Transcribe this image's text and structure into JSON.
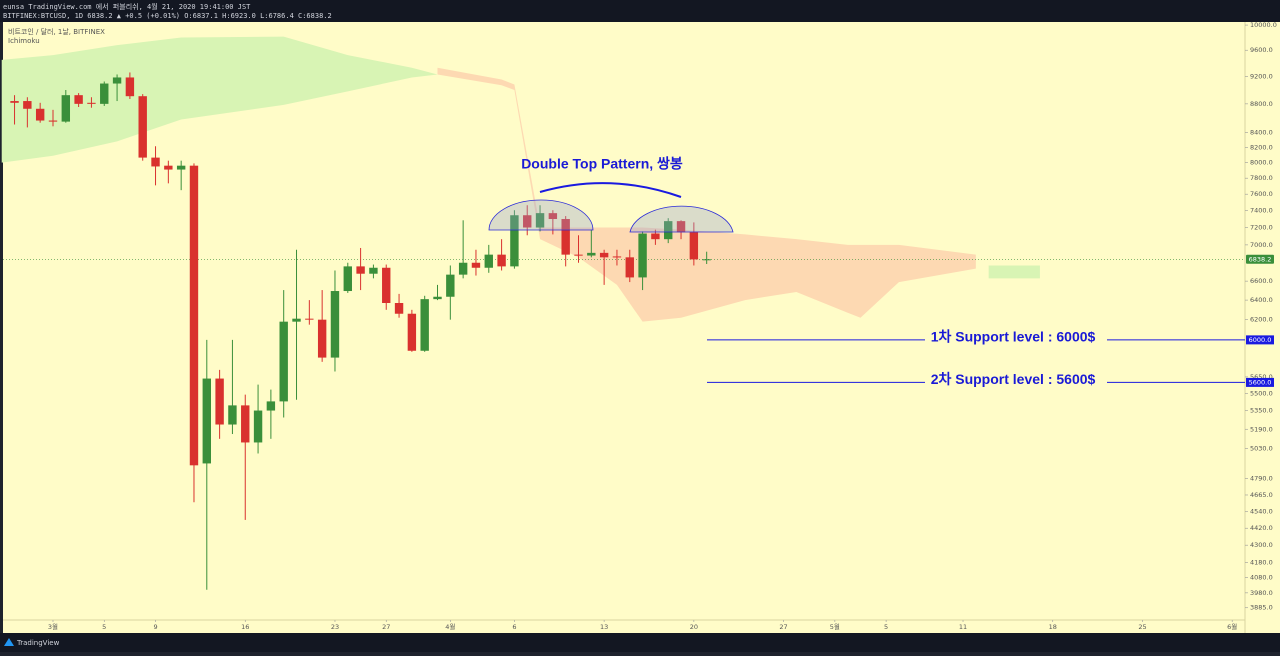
{
  "header": {
    "publisher": "eunsa TradingView.com 에서 퍼블리쉬, 4월 21, 2020 19:41:00 JST",
    "symbol_line": "BITFINEX:BTCUSD, 1D 6838.2 ▲ +0.5 (+0.01%) O:6837.1 H:6923.0 L:6786.4 C:6838.2",
    "brand": "TradingView"
  },
  "chart_data": {
    "type": "candlestick",
    "title": "비트코인 / 달러, 1날, BITFINEX",
    "indicator": "Ichimoku",
    "log_scale": true,
    "up_color": "#3a8f3a",
    "down_color": "#d9312e",
    "x": [
      -3,
      -2,
      -1,
      0,
      1,
      2,
      3,
      4,
      5,
      6,
      7,
      8,
      9,
      10,
      11,
      12,
      13,
      14,
      15,
      16,
      17,
      18,
      19,
      20,
      21,
      22,
      23,
      24,
      25,
      26,
      27,
      28,
      29,
      30,
      31,
      32,
      33,
      34,
      35,
      36,
      37,
      38,
      39,
      40,
      41,
      42,
      43,
      44,
      45,
      46,
      47,
      48,
      49,
      50,
      51
    ],
    "open": [
      8840,
      8840,
      8730,
      8565,
      8550,
      8925,
      8815,
      8800,
      9095,
      9185,
      8910,
      8065,
      7960,
      7910,
      7960,
      4910,
      5635,
      5230,
      5395,
      5080,
      5350,
      5430,
      6180,
      6210,
      6200,
      5830,
      6495,
      6760,
      6680,
      6745,
      6370,
      6260,
      5895,
      6410,
      6435,
      6670,
      6800,
      6745,
      6890,
      6760,
      7345,
      7200,
      7370,
      7300,
      6890,
      6880,
      6910,
      6870,
      6860,
      6640,
      7130,
      7065,
      7275,
      7145,
      6837.1
    ],
    "high": [
      8925,
      8895,
      8815,
      8715,
      9000,
      8955,
      8895,
      9125,
      9230,
      9260,
      8940,
      8215,
      8025,
      8025,
      7990,
      6000,
      5715,
      6000,
      5490,
      5580,
      5535,
      6505,
      6945,
      6400,
      6505,
      6715,
      6800,
      6965,
      6780,
      6780,
      6465,
      6300,
      6445,
      6560,
      6770,
      7285,
      6945,
      7000,
      7065,
      7405,
      7465,
      7465,
      7405,
      7335,
      7110,
      7175,
      6945,
      6945,
      6945,
      7155,
      7175,
      7310,
      7285,
      7260,
      6923.0
    ],
    "low": [
      8510,
      8470,
      8535,
      8485,
      8535,
      8755,
      8745,
      8770,
      8840,
      8870,
      8025,
      7710,
      7735,
      7650,
      4610,
      4000,
      5110,
      5150,
      4480,
      4990,
      5110,
      5290,
      5445,
      6150,
      5790,
      5700,
      6475,
      6505,
      6630,
      6300,
      6220,
      5885,
      5885,
      6400,
      6200,
      6630,
      6660,
      6690,
      6715,
      6735,
      7110,
      7155,
      7120,
      6760,
      6800,
      6860,
      6560,
      6770,
      6590,
      6505,
      7000,
      7020,
      7065,
      6770,
      6786.4
    ],
    "close": [
      8815,
      8730,
      8565,
      8550,
      8925,
      8800,
      8800,
      9095,
      9185,
      8910,
      8065,
      7950,
      7910,
      7960,
      4895,
      5635,
      5230,
      5395,
      5080,
      5350,
      5430,
      6180,
      6210,
      6200,
      5830,
      6495,
      6760,
      6680,
      6745,
      6370,
      6260,
      5895,
      6410,
      6435,
      6670,
      6800,
      6745,
      6890,
      6760,
      7345,
      7200,
      7370,
      7300,
      6890,
      6880,
      6910,
      6860,
      6860,
      6640,
      7130,
      7065,
      7275,
      7145,
      6837.1,
      6838.2
    ],
    "clouds": [
      {
        "color": "#d8f4b4",
        "x": [
          -4,
          0,
          5,
          10,
          18,
          23,
          28,
          30
        ],
        "upper": [
          9450,
          9525,
          9680,
          9800,
          9815,
          9525,
          9330,
          9230
        ],
        "lower": [
          8000,
          8090,
          8280,
          8580,
          8785,
          8980,
          9185,
          9230
        ]
      },
      {
        "color": "#fdd9b2",
        "x": [
          30,
          35,
          36,
          38,
          41,
          44,
          46,
          49,
          54,
          58,
          62,
          63,
          66,
          72
        ],
        "upper": [
          9330,
          9155,
          9080,
          7200,
          7200,
          7200,
          7200,
          7175,
          7120,
          7065,
          7000,
          7000,
          7000,
          6890
        ],
        "lower": [
          9230,
          9070,
          9000,
          7065,
          6860,
          6560,
          6180,
          6220,
          6400,
          6485,
          6270,
          6220,
          6590,
          6735
        ]
      },
      {
        "color": "#d8f4b4",
        "x": [
          73,
          77
        ],
        "upper": [
          6770,
          6770
        ],
        "lower": [
          6630,
          6630
        ]
      }
    ],
    "last_price": 6838.2,
    "last_price_color": "#3a8f3a",
    "annotation": "Double Top Pattern, 쌍봉",
    "support_lines": [
      {
        "label": "1차 Support level : 6000$",
        "value": 6000,
        "price_label": "6000.0"
      },
      {
        "label": "2차 Support level : 5600$",
        "value": 5600,
        "price_label": "5600.0"
      }
    ],
    "support_color": "#1a1ae0",
    "xlim": [
      -3.9,
      93
    ],
    "xticks": [
      {
        "value": 0,
        "label": "3월"
      },
      {
        "value": 4,
        "label": "5"
      },
      {
        "value": 8,
        "label": "9"
      },
      {
        "value": 15,
        "label": "16"
      },
      {
        "value": 22,
        "label": "23"
      },
      {
        "value": 26,
        "label": "27"
      },
      {
        "value": 31,
        "label": "4월"
      },
      {
        "value": 36,
        "label": "6"
      },
      {
        "value": 43,
        "label": "13"
      },
      {
        "value": 50,
        "label": "20"
      },
      {
        "value": 57,
        "label": "27"
      },
      {
        "value": 61,
        "label": "5월"
      },
      {
        "value": 65,
        "label": "5"
      },
      {
        "value": 71,
        "label": "11"
      },
      {
        "value": 78,
        "label": "18"
      },
      {
        "value": 85,
        "label": "25"
      },
      {
        "value": 92,
        "label": "6월"
      }
    ],
    "ylim": [
      3735,
      10050
    ],
    "yticks": [
      {
        "value": 10000,
        "label": "10000.0"
      },
      {
        "value": 9600,
        "label": "9600.0"
      },
      {
        "value": 9200,
        "label": "9200.0"
      },
      {
        "value": 8800,
        "label": "8800.0"
      },
      {
        "value": 8400,
        "label": "8400.0"
      },
      {
        "value": 8200,
        "label": "8200.0"
      },
      {
        "value": 8000,
        "label": "8000.0"
      },
      {
        "value": 7800,
        "label": "7800.0"
      },
      {
        "value": 7600,
        "label": "7600.0"
      },
      {
        "value": 7400,
        "label": "7400.0"
      },
      {
        "value": 7200,
        "label": "7200.0"
      },
      {
        "value": 7000,
        "label": "7000.0"
      },
      {
        "value": 6600,
        "label": "6600.0"
      },
      {
        "value": 6400,
        "label": "6400.0"
      },
      {
        "value": 6200,
        "label": "6200.0"
      },
      {
        "value": 5650,
        "label": "5650.0"
      },
      {
        "value": 5500,
        "label": "5500.0"
      },
      {
        "value": 5350,
        "label": "5350.0"
      },
      {
        "value": 5190,
        "label": "5190.0"
      },
      {
        "value": 5030,
        "label": "5030.0"
      },
      {
        "value": 4790,
        "label": "4790.0"
      },
      {
        "value": 4665,
        "label": "4665.0"
      },
      {
        "value": 4540,
        "label": "4540.0"
      },
      {
        "value": 4420,
        "label": "4420.0"
      },
      {
        "value": 4300,
        "label": "4300.0"
      },
      {
        "value": 4180,
        "label": "4180.0"
      },
      {
        "value": 4080,
        "label": "4080.0"
      },
      {
        "value": 3980,
        "label": "3980.0"
      },
      {
        "value": 3885,
        "label": "3885.0"
      }
    ]
  }
}
